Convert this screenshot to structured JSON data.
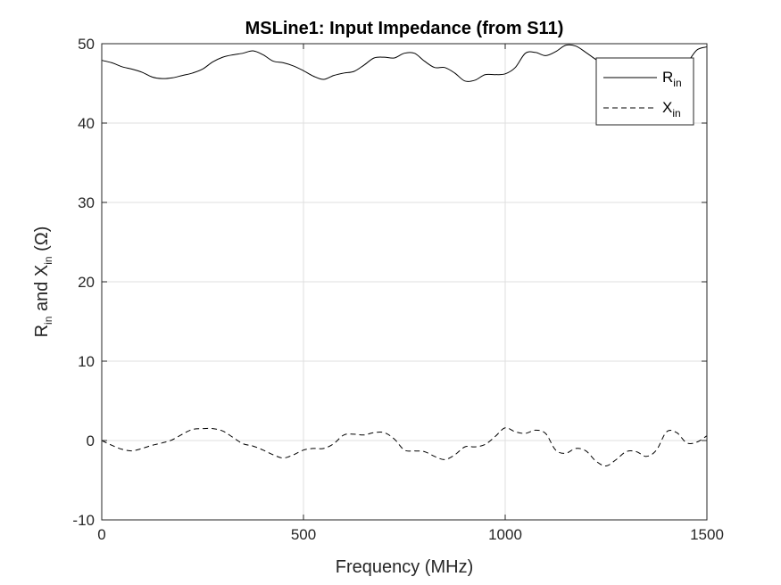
{
  "chart_data": {
    "type": "line",
    "title": "MSLine1: Input Impedance (from S11)",
    "xlabel": "Frequency (MHz)",
    "ylabel": {
      "r_main": "R",
      "r_sub": "in",
      "middle": " and X",
      "x_sub": "in",
      "unit": " (Ω)"
    },
    "xlim": [
      0,
      1500
    ],
    "ylim": [
      -10,
      50
    ],
    "xticks": [
      0,
      500,
      1000,
      1500
    ],
    "xtick_labels": [
      "0",
      "500",
      "1000",
      "1500"
    ],
    "yticks": [
      -10,
      0,
      10,
      20,
      30,
      40,
      50
    ],
    "ytick_labels": [
      "-10",
      "0",
      "10",
      "20",
      "30",
      "40",
      "50"
    ],
    "grid": true,
    "legend_position": "top-right",
    "series": [
      {
        "name": "R",
        "name_sub": "in",
        "style": "solid",
        "color": "#000000",
        "x": [
          0,
          25,
          50,
          75,
          100,
          125,
          150,
          175,
          200,
          225,
          250,
          275,
          300,
          325,
          350,
          375,
          400,
          425,
          450,
          475,
          500,
          525,
          550,
          575,
          600,
          625,
          650,
          675,
          700,
          725,
          750,
          775,
          800,
          825,
          850,
          875,
          900,
          925,
          950,
          975,
          1000,
          1025,
          1050,
          1075,
          1100,
          1125,
          1150,
          1175,
          1200,
          1225,
          1250,
          1275,
          1300,
          1325,
          1350,
          1375,
          1400,
          1425,
          1450,
          1475,
          1500
        ],
        "y": [
          47.9,
          47.6,
          47.1,
          46.8,
          46.4,
          45.8,
          45.6,
          45.7,
          46.0,
          46.3,
          46.8,
          47.7,
          48.3,
          48.6,
          48.8,
          49.1,
          48.6,
          47.8,
          47.6,
          47.2,
          46.6,
          45.9,
          45.5,
          46.0,
          46.3,
          46.5,
          47.3,
          48.2,
          48.3,
          48.2,
          48.8,
          48.8,
          47.8,
          47.0,
          47.0,
          46.3,
          45.3,
          45.4,
          46.1,
          46.1,
          46.2,
          47.0,
          48.8,
          48.9,
          48.5,
          49.0,
          49.8,
          49.7,
          48.9,
          48.0,
          47.2,
          46.3,
          45.8,
          46.4,
          46.0,
          45.5,
          45.3,
          46.2,
          47.5,
          49.2,
          49.6
        ]
      },
      {
        "name": "X",
        "name_sub": "in",
        "style": "dashed",
        "color": "#000000",
        "x": [
          0,
          25,
          50,
          75,
          100,
          125,
          150,
          175,
          200,
          225,
          250,
          275,
          300,
          325,
          350,
          375,
          400,
          425,
          450,
          475,
          500,
          525,
          550,
          575,
          600,
          625,
          650,
          675,
          700,
          725,
          750,
          775,
          800,
          825,
          850,
          875,
          900,
          925,
          950,
          975,
          1000,
          1025,
          1050,
          1075,
          1100,
          1125,
          1150,
          1175,
          1200,
          1225,
          1250,
          1275,
          1300,
          1325,
          1350,
          1375,
          1400,
          1425,
          1450,
          1475,
          1500
        ],
        "y": [
          0.0,
          -0.6,
          -1.1,
          -1.3,
          -1.0,
          -0.6,
          -0.3,
          0.1,
          0.8,
          1.4,
          1.5,
          1.5,
          1.2,
          0.4,
          -0.4,
          -0.7,
          -1.2,
          -1.8,
          -2.2,
          -1.8,
          -1.2,
          -1.0,
          -1.0,
          -0.4,
          0.7,
          0.8,
          0.7,
          1.0,
          1.0,
          0.2,
          -1.2,
          -1.3,
          -1.4,
          -2.0,
          -2.4,
          -1.8,
          -0.8,
          -0.8,
          -0.5,
          0.5,
          1.6,
          1.1,
          0.9,
          1.3,
          0.9,
          -1.2,
          -1.6,
          -1.0,
          -1.3,
          -2.6,
          -3.2,
          -2.4,
          -1.4,
          -1.4,
          -2.0,
          -1.2,
          1.1,
          1.0,
          -0.3,
          -0.2,
          0.6
        ]
      }
    ]
  }
}
